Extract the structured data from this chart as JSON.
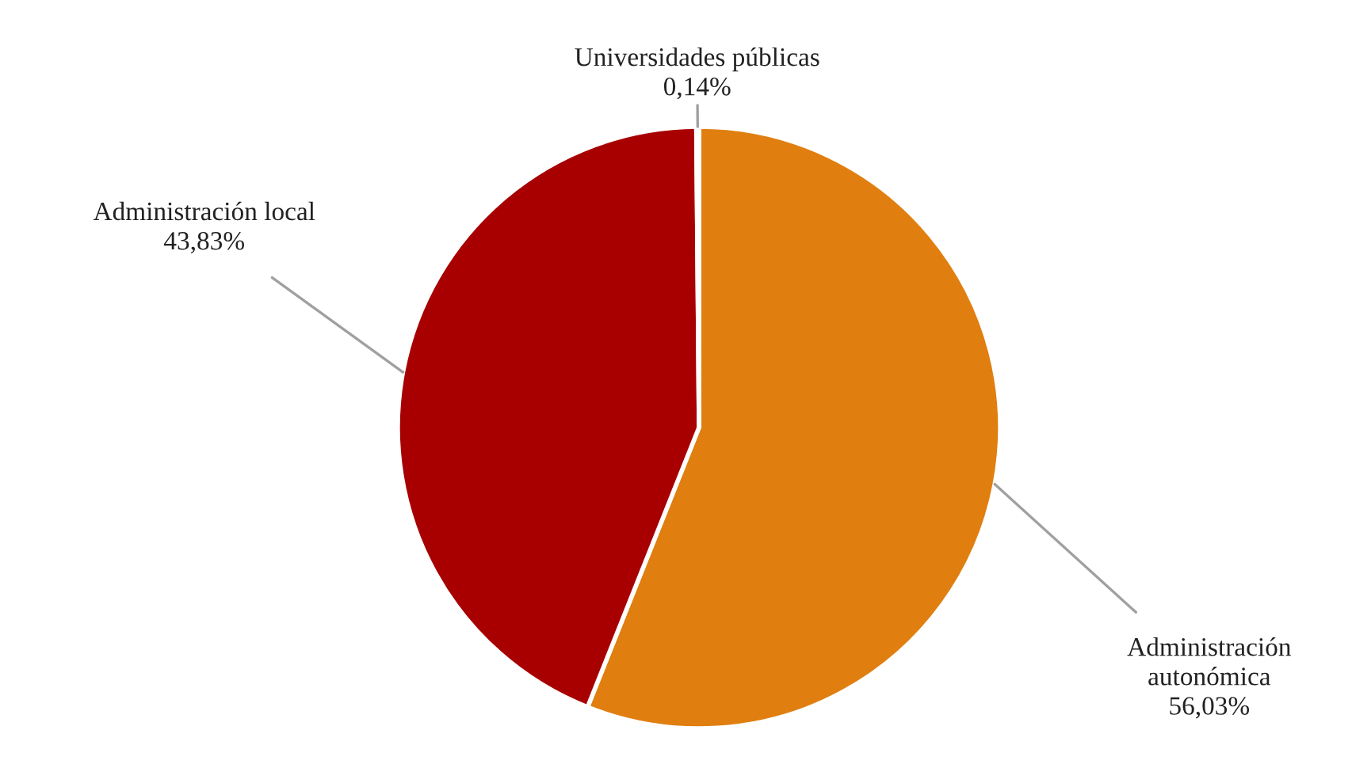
{
  "chart_data": {
    "type": "pie",
    "categories": [
      "Administración autonómica",
      "Administración local",
      "Universidades públicas"
    ],
    "values": [
      56.03,
      43.83,
      0.14
    ],
    "value_labels": [
      "56,03%",
      "43,83%",
      "0,14%"
    ],
    "colors": [
      "#e07f10",
      "#a80000",
      "#7f9fc4"
    ],
    "legend": false
  }
}
